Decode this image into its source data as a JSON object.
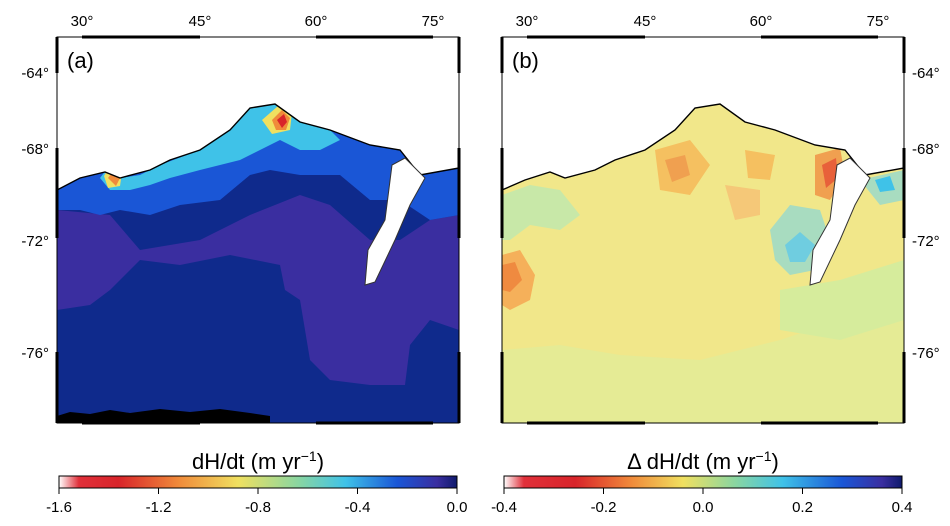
{
  "figure": {
    "panels": [
      {
        "id": "a",
        "label": "(a)",
        "lon_ticks": [
          "30°",
          "45°",
          "60°",
          "75°"
        ],
        "lat_ticks_left": [
          "-64°",
          "-68°",
          "-72°",
          "-76°"
        ],
        "lat_ticks_right": []
      },
      {
        "id": "b",
        "label": "(b)",
        "lon_ticks": [
          "30°",
          "45°",
          "60°",
          "75°"
        ],
        "lat_ticks_left": [],
        "lat_ticks_right": [
          "-64°",
          "-68°",
          "-72°",
          "-76°"
        ]
      }
    ],
    "colorbars": [
      {
        "title_main": "dH/dt (m yr",
        "title_sup": "−1",
        "title_end": ")",
        "ticks": [
          "-1.6",
          "-1.2",
          "-0.8",
          "-0.4",
          "0.0"
        ],
        "range": [
          -1.6,
          0.0
        ]
      },
      {
        "title_main": "Δ dH/dt (m yr",
        "title_sup": "−1",
        "title_end": ")",
        "ticks": [
          "-0.4",
          "-0.2",
          "0.0",
          "0.2",
          "0.4"
        ],
        "range": [
          -0.4,
          0.4
        ]
      }
    ],
    "colors": {
      "deep_blue": "#0f2a8c",
      "indigo": "#3a2ea0",
      "blue": "#1a56d6",
      "cyan": "#3fc2e8",
      "yellow": "#f0e060",
      "orange": "#f08a3a",
      "red": "#d8242a",
      "pale_yellow": "#f1e78a",
      "pale_green": "#d6ec9c"
    }
  }
}
